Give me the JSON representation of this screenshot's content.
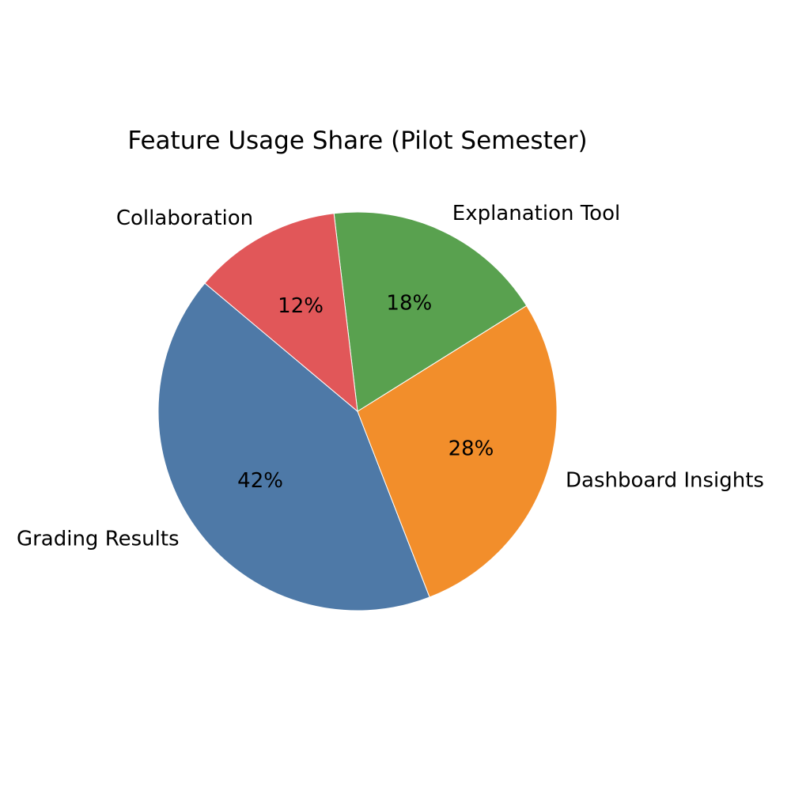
{
  "chart_data": {
    "type": "pie",
    "title": "Feature Usage Share (Pilot Semester)",
    "categories": [
      "Grading Results",
      "Dashboard Insights",
      "Explanation Tool",
      "Collaboration"
    ],
    "values": [
      42,
      28,
      18,
      12
    ],
    "percent_labels": [
      "42%",
      "28%",
      "18%",
      "12%"
    ],
    "colors": [
      "#4e79a7",
      "#f28e2b",
      "#59a14f",
      "#e15759"
    ],
    "start_angle_deg": 140,
    "direction": "counterclockwise"
  }
}
